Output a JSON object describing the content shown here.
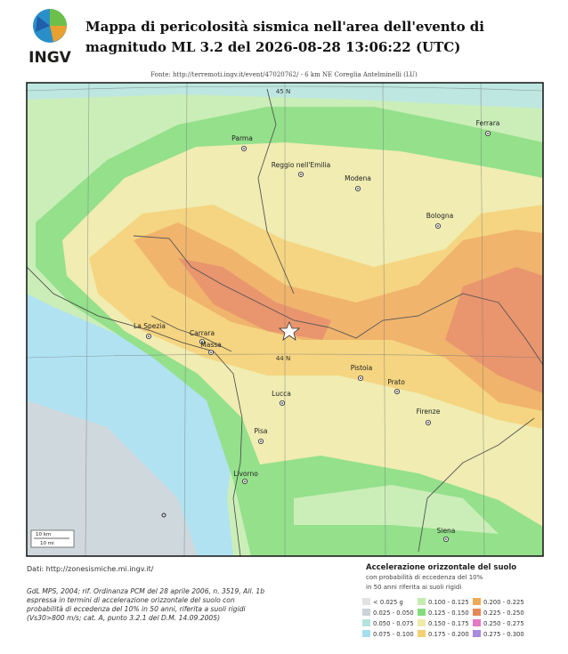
{
  "header": {
    "logo": "INGV",
    "title": [
      "Mappa di pericolosità sismica nell'area dell'evento di",
      "magnitudo ML 3.2 del 2026-08-28 13:06:22 (UTC)"
    ],
    "source": "Fonte: http://terremoti.ingv.it/event/47020762/ - 6 km NE Coreglia Antelminelli (LU)"
  },
  "map": {
    "parallels": [
      "45 N",
      "44 N"
    ],
    "cities": [
      "Ferrara",
      "Parma",
      "Reggio nell'Emilia",
      "Modena",
      "Bologna",
      "La Spezia",
      "Carrara",
      "Massa",
      "Pistoia",
      "Prato",
      "Lucca",
      "Firenze",
      "Pisa",
      "Livorno",
      "Siena"
    ],
    "scale": [
      "10 km",
      "10 mi"
    ]
  },
  "footer": {
    "data_source": "Dati: http://zonesismiche.mi.ingv.it/",
    "citation": [
      "GdL MPS, 2004; rif. Ordinanza PCM del 28 aprile 2006, n. 3519, All. 1b",
      "espressa in termini di accelerazione orizzontale del suolo con",
      "probabilità di eccedenza del 10% in 50 anni, riferita a suoli rigidi",
      "(Vs30>800 m/s; cat. A, punto 3.2.1 del D.M. 14.09.2005)"
    ]
  },
  "legend": {
    "title": "Accelerazione orizzontale del suolo",
    "subtitle": [
      "con probabilità di eccedenza del 10%",
      "in 50 anni riferita ai suoli rigidi"
    ],
    "items": [
      {
        "label": "< 0.025 g",
        "color": "#e2e2e2"
      },
      {
        "label": "0.025 - 0.050",
        "color": "#c9d3d8"
      },
      {
        "label": "0.050 - 0.075",
        "color": "#b4e4dc"
      },
      {
        "label": "0.075 - 0.100",
        "color": "#a6def0"
      },
      {
        "label": "0.100 - 0.125",
        "color": "#c4ecb0"
      },
      {
        "label": "0.125 - 0.150",
        "color": "#86dc7c"
      },
      {
        "label": "0.150 - 0.175",
        "color": "#eeeaa8"
      },
      {
        "label": "0.175 - 0.200",
        "color": "#f4d070"
      },
      {
        "label": "0.200 - 0.225",
        "color": "#eeaa58"
      },
      {
        "label": "0.225 - 0.250",
        "color": "#e6875a"
      },
      {
        "label": "0.250 - 0.275",
        "color": "#e47ac4"
      },
      {
        "label": "0.275 - 0.300",
        "color": "#a88ae0"
      }
    ]
  }
}
